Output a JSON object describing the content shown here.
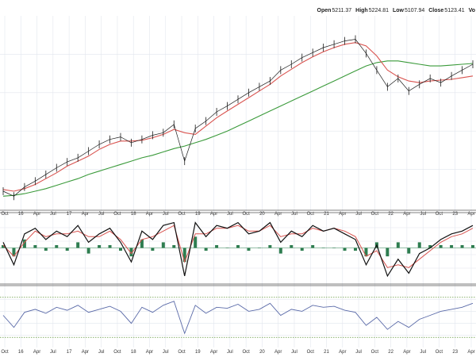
{
  "quote": {
    "open_label": "Open",
    "open_value": "5211.37",
    "high_label": "High",
    "high_value": "5224.81",
    "low_label": "Low",
    "low_value": "5107.94",
    "close_label": "Close",
    "close_value": "5123.41",
    "vol_label": "Vo"
  },
  "colors": {
    "price": "#1a1a1a",
    "sma50": "#d9534f",
    "sma200": "#3a9a3a",
    "macd": "#111111",
    "signal": "#d9534f",
    "histogram": "#2e7d50",
    "rsi": "#5a6aa8",
    "rsi_fill": "#6aa888",
    "grid": "#e2e6ee",
    "divider": "#555555",
    "ref_dotted": "#7aa85a"
  },
  "chart_data": {
    "type": "line",
    "x_tick_labels": [
      "Oct",
      "16",
      "Apr",
      "Jul",
      "17",
      "Apr",
      "Jul",
      "Oct",
      "18",
      "Apr",
      "Jul",
      "Oct",
      "19",
      "Apr",
      "Jul",
      "Oct",
      "20",
      "Apr",
      "Jul",
      "Oct",
      "21",
      "Apr",
      "Jul",
      "Oct",
      "22",
      "Apr",
      "Jul",
      "Oct",
      "23",
      "Apr"
    ],
    "price_panel": {
      "series": [
        {
          "role": "price",
          "style": "ohlc-bars",
          "values": [
            0.1,
            0.04,
            0.15,
            0.22,
            0.3,
            0.38,
            0.45,
            0.5,
            0.58,
            0.66,
            0.72,
            0.75,
            0.68,
            0.72,
            0.77,
            0.8,
            0.9,
            0.46,
            0.85,
            0.94,
            1.05,
            1.12,
            1.2,
            1.28,
            1.35,
            1.42,
            1.55,
            1.62,
            1.7,
            1.76,
            1.82,
            1.86,
            1.9,
            1.92,
            1.75,
            1.55,
            1.35,
            1.45,
            1.3,
            1.38,
            1.45,
            1.4,
            1.48,
            1.55,
            1.62
          ]
        },
        {
          "role": "sma50",
          "values": [
            0.12,
            0.1,
            0.13,
            0.18,
            0.25,
            0.32,
            0.4,
            0.46,
            0.52,
            0.6,
            0.66,
            0.7,
            0.7,
            0.71,
            0.74,
            0.78,
            0.84,
            0.8,
            0.78,
            0.88,
            0.98,
            1.06,
            1.14,
            1.22,
            1.3,
            1.38,
            1.48,
            1.56,
            1.64,
            1.71,
            1.77,
            1.82,
            1.86,
            1.88,
            1.84,
            1.72,
            1.55,
            1.47,
            1.42,
            1.4,
            1.42,
            1.43,
            1.44,
            1.46,
            1.48
          ]
        },
        {
          "role": "sma200",
          "values": [
            0.04,
            0.05,
            0.07,
            0.1,
            0.13,
            0.17,
            0.21,
            0.25,
            0.3,
            0.34,
            0.38,
            0.42,
            0.46,
            0.5,
            0.53,
            0.57,
            0.61,
            0.64,
            0.68,
            0.72,
            0.77,
            0.82,
            0.88,
            0.94,
            1.0,
            1.06,
            1.12,
            1.18,
            1.24,
            1.3,
            1.36,
            1.42,
            1.48,
            1.54,
            1.6,
            1.64,
            1.66,
            1.66,
            1.64,
            1.62,
            1.6,
            1.6,
            1.61,
            1.62,
            1.63
          ]
        }
      ]
    },
    "macd_panel": {
      "series": [
        {
          "role": "macd",
          "values": [
            0.2,
            -0.6,
            0.5,
            0.7,
            0.3,
            0.6,
            0.4,
            0.8,
            0.2,
            0.5,
            0.7,
            0.2,
            -0.5,
            0.6,
            0.3,
            0.8,
            0.9,
            -1.0,
            0.9,
            0.4,
            0.8,
            0.7,
            0.9,
            0.5,
            0.6,
            0.9,
            0.2,
            0.6,
            0.4,
            0.8,
            0.6,
            0.7,
            0.5,
            0.3,
            -0.6,
            0.1,
            -1.0,
            -0.4,
            -0.9,
            -0.2,
            0.0,
            0.3,
            0.5,
            0.6,
            0.8
          ]
        },
        {
          "role": "signal",
          "values": [
            0.1,
            -0.3,
            0.2,
            0.6,
            0.4,
            0.5,
            0.5,
            0.6,
            0.4,
            0.4,
            0.6,
            0.3,
            -0.2,
            0.3,
            0.4,
            0.6,
            0.8,
            -0.5,
            0.5,
            0.5,
            0.7,
            0.7,
            0.8,
            0.6,
            0.6,
            0.8,
            0.4,
            0.5,
            0.5,
            0.7,
            0.6,
            0.7,
            0.6,
            0.4,
            -0.3,
            -0.1,
            -0.7,
            -0.6,
            -0.7,
            -0.4,
            -0.1,
            0.2,
            0.4,
            0.5,
            0.7
          ]
        }
      ]
    },
    "rsi_panel": {
      "series": [
        {
          "role": "rsi",
          "values": [
            52,
            40,
            55,
            58,
            54,
            60,
            57,
            62,
            55,
            58,
            61,
            56,
            44,
            60,
            55,
            62,
            66,
            34,
            62,
            54,
            60,
            59,
            63,
            56,
            58,
            64,
            52,
            58,
            56,
            62,
            60,
            61,
            57,
            55,
            42,
            50,
            38,
            46,
            40,
            48,
            52,
            56,
            58,
            60,
            64
          ]
        }
      ]
    }
  }
}
